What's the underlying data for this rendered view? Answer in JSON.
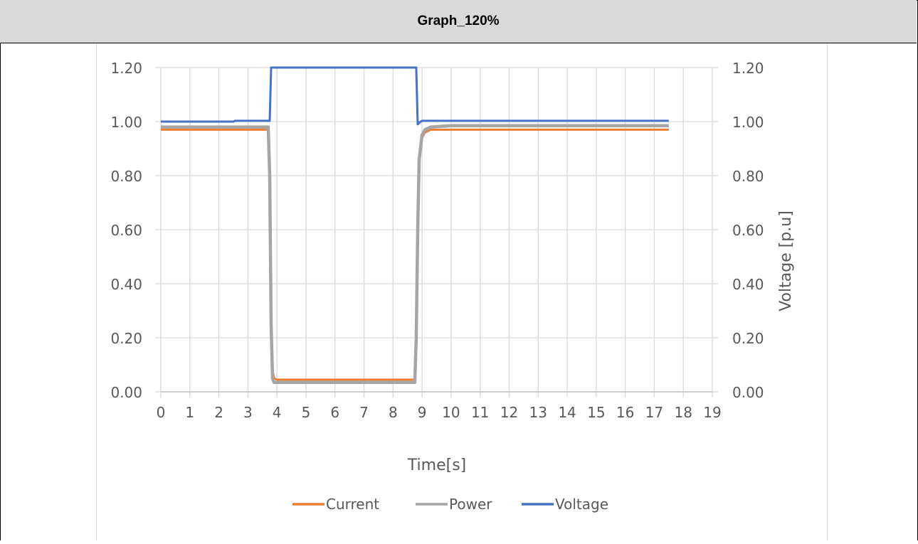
{
  "header": {
    "title": "Graph_120%"
  },
  "chart_data": {
    "type": "line",
    "title": "",
    "xlabel": "Time[s]",
    "ylabel": "",
    "y2label": "Voltage [p.u]",
    "xlim": [
      0,
      19
    ],
    "ylim": [
      0,
      1.2
    ],
    "y2lim": [
      0,
      1.2
    ],
    "grid": true,
    "legend": "bottom",
    "x_ticks": [
      "0",
      "1",
      "2",
      "3",
      "4",
      "5",
      "6",
      "7",
      "8",
      "9",
      "10",
      "11",
      "12",
      "13",
      "14",
      "15",
      "16",
      "17",
      "18",
      "19"
    ],
    "y_ticks": [
      "0.00",
      "0.20",
      "0.40",
      "0.60",
      "0.80",
      "1.00",
      "1.20"
    ],
    "y2_ticks": [
      "0.00",
      "0.20",
      "0.40",
      "0.60",
      "0.80",
      "1.00",
      "1.20"
    ],
    "series": [
      {
        "name": "Current",
        "color": "#ed7d31",
        "x": [
          0,
          3.7,
          3.75,
          3.8,
          3.85,
          3.9,
          4.0,
          4.5,
          6.0,
          7.5,
          8.75,
          8.8,
          8.85,
          8.9,
          9.0,
          9.1,
          9.3,
          10.0,
          12.0,
          14.0,
          16.0,
          17.5
        ],
        "y": [
          0.97,
          0.97,
          0.8,
          0.3,
          0.08,
          0.05,
          0.045,
          0.045,
          0.045,
          0.045,
          0.045,
          0.2,
          0.6,
          0.85,
          0.94,
          0.96,
          0.97,
          0.97,
          0.97,
          0.97,
          0.97,
          0.97
        ]
      },
      {
        "name": "Power",
        "color": "#a5a5a5",
        "x": [
          0,
          3.7,
          3.75,
          3.8,
          3.85,
          3.9,
          4.0,
          4.5,
          6.0,
          7.5,
          8.75,
          8.8,
          8.85,
          8.9,
          9.0,
          9.1,
          9.3,
          10.0,
          12.0,
          14.0,
          16.0,
          17.5
        ],
        "y": [
          0.98,
          0.98,
          0.8,
          0.25,
          0.05,
          0.035,
          0.035,
          0.035,
          0.035,
          0.035,
          0.035,
          0.2,
          0.6,
          0.86,
          0.95,
          0.97,
          0.98,
          0.985,
          0.985,
          0.985,
          0.985,
          0.985
        ]
      },
      {
        "name": "Voltage",
        "color": "#4472c4",
        "x": [
          0,
          2.5,
          2.55,
          3.75,
          3.8,
          8.8,
          8.85,
          8.95,
          9.0,
          17.5
        ],
        "y": [
          1.0,
          1.0,
          1.003,
          1.003,
          1.2,
          1.2,
          0.99,
          1.0,
          1.003,
          1.003
        ]
      }
    ]
  }
}
